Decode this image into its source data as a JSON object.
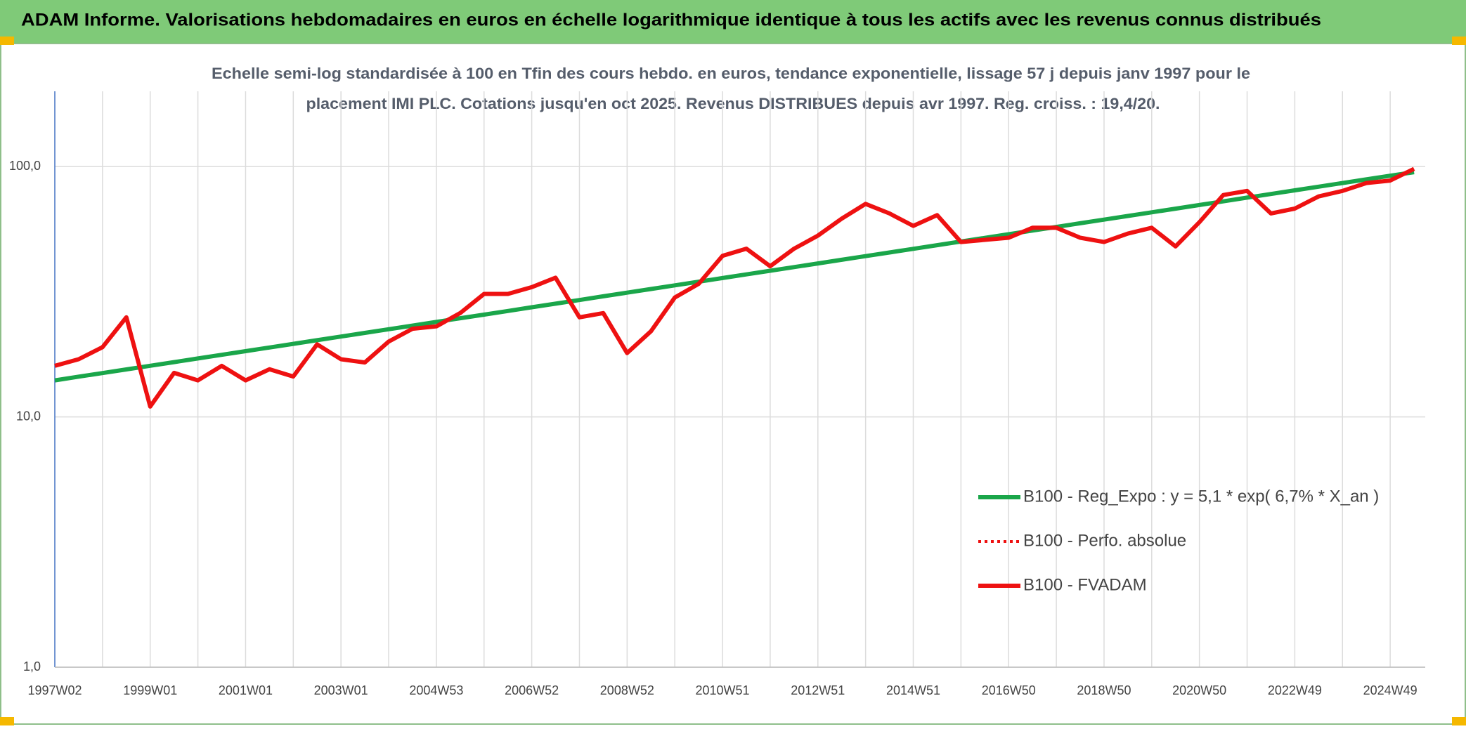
{
  "chart_data": {
    "type": "line",
    "title": "ADAM Informe. Valorisations hebdomadaires en euros en échelle logarithmique identique à tous les actifs avec les revenus connus distribués",
    "subtitle": [
      "Echelle semi-log standardisée à 100 en Tfin des cours hebdo. en euros, tendance exponentielle, lissage 57 j depuis janv 1997 pour le",
      "placement IMI PLC. Cotations jusqu'en oct 2025. Revenus DISTRIBUES depuis avr 1997. Reg. croiss. : 19,4/20."
    ],
    "categories": [
      "1997W02",
      null,
      null,
      null,
      "1999W01",
      null,
      null,
      null,
      "2001W01",
      null,
      null,
      null,
      "2003W01",
      null,
      null,
      null,
      "2004W53",
      null,
      null,
      null,
      "2006W52",
      null,
      null,
      null,
      "2008W52",
      null,
      null,
      null,
      "2010W51",
      null,
      null,
      null,
      "2012W51",
      null,
      null,
      null,
      "2014W51",
      null,
      null,
      null,
      "2016W50",
      null,
      null,
      null,
      "2018W50",
      null,
      null,
      null,
      "2020W50",
      null,
      null,
      null,
      "2022W49",
      null,
      null,
      null,
      "2024W49",
      null
    ],
    "series": [
      {
        "name": "B100 - Reg_Expo : y = 5,1 * exp( 6,7% *  X_an )",
        "color": "#1aa64a",
        "dash": "solid",
        "values": [
          14,
          14.48,
          14.97,
          15.48,
          16.01,
          16.56,
          17.12,
          17.71,
          18.31,
          18.94,
          19.59,
          20.26,
          20.95,
          21.67,
          22.41,
          23.17,
          23.97,
          24.79,
          25.63,
          26.51,
          27.42,
          28.35,
          29.32,
          30.33,
          31.36,
          32.44,
          33.55,
          34.69,
          35.88,
          37.1,
          38.37,
          39.69,
          41.04,
          42.45,
          43.9,
          45.4,
          46.95,
          48.56,
          50.22,
          51.93,
          53.71,
          55.55,
          57.44,
          59.41,
          61.44,
          63.54,
          65.71,
          67.96,
          70.28,
          72.68,
          75.17,
          77.74,
          80.4,
          83.15,
          85.99,
          88.93,
          91.97,
          95.1
        ]
      },
      {
        "name": "B100 - Perfo. absolue",
        "color": "#ee1111",
        "dash": "dotted"
      },
      {
        "name": "B100 - FVADAM",
        "color": "#ee1111",
        "dash": "solid",
        "values": [
          16,
          17,
          19,
          25,
          11,
          15,
          14,
          16,
          14,
          15.5,
          14.5,
          19.5,
          17,
          16.5,
          20,
          22.5,
          23,
          26,
          31,
          31,
          33,
          36,
          25,
          26,
          18,
          22,
          30,
          34,
          44,
          47,
          40,
          47,
          53,
          62,
          71,
          65,
          58,
          64,
          50,
          51,
          52,
          57,
          57,
          52,
          50,
          54,
          57,
          48,
          60,
          77,
          80,
          65,
          68,
          76,
          80,
          86,
          88,
          98
        ]
      }
    ],
    "ylim": [
      1,
      200
    ],
    "yticks": [
      {
        "value": 1,
        "label": "1,0"
      },
      {
        "value": 10,
        "label": "10,0"
      },
      {
        "value": 100,
        "label": "100,0"
      }
    ],
    "log_scale": true,
    "grid": true,
    "legend": "bottom-right"
  }
}
